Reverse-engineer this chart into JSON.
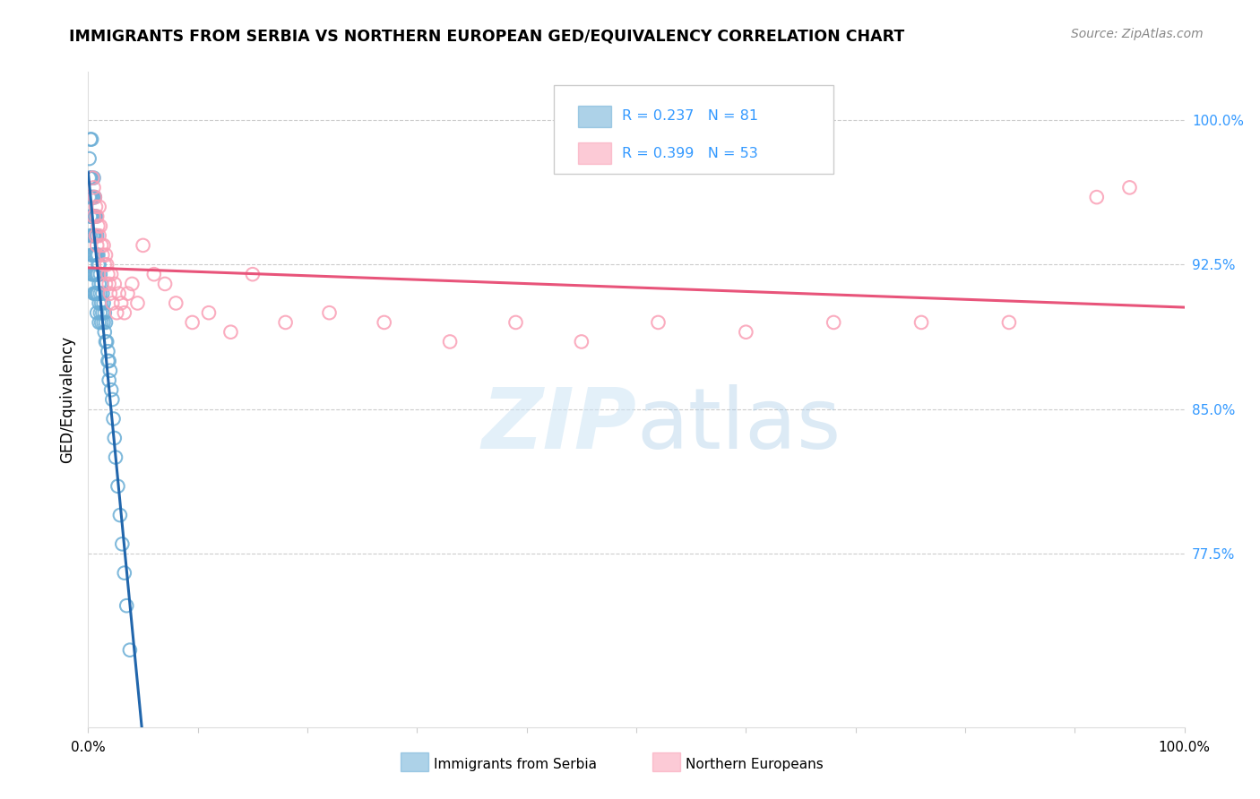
{
  "title": "IMMIGRANTS FROM SERBIA VS NORTHERN EUROPEAN GED/EQUIVALENCY CORRELATION CHART",
  "source": "Source: ZipAtlas.com",
  "ylabel": "GED/Equivalency",
  "ytick_labels": [
    "100.0%",
    "92.5%",
    "85.0%",
    "77.5%"
  ],
  "ytick_values": [
    1.0,
    0.925,
    0.85,
    0.775
  ],
  "xlim": [
    0.0,
    1.0
  ],
  "ylim": [
    0.685,
    1.025
  ],
  "serbia_color": "#6baed6",
  "northern_color": "#fa9fb5",
  "serbia_R": 0.237,
  "serbia_N": 81,
  "northern_R": 0.399,
  "northern_N": 53,
  "serbia_line_color": "#2166ac",
  "northern_line_color": "#e8547a",
  "legend_label_serbia": "Immigrants from Serbia",
  "legend_label_northern": "Northern Europeans",
  "serbia_x": [
    0.001,
    0.001,
    0.001,
    0.002,
    0.002,
    0.002,
    0.002,
    0.002,
    0.003,
    0.003,
    0.003,
    0.003,
    0.003,
    0.003,
    0.004,
    0.004,
    0.004,
    0.004,
    0.004,
    0.005,
    0.005,
    0.005,
    0.005,
    0.005,
    0.005,
    0.005,
    0.006,
    0.006,
    0.006,
    0.006,
    0.006,
    0.006,
    0.007,
    0.007,
    0.007,
    0.007,
    0.007,
    0.008,
    0.008,
    0.008,
    0.008,
    0.008,
    0.009,
    0.009,
    0.009,
    0.009,
    0.01,
    0.01,
    0.01,
    0.01,
    0.011,
    0.011,
    0.011,
    0.012,
    0.012,
    0.012,
    0.013,
    0.013,
    0.014,
    0.014,
    0.015,
    0.015,
    0.016,
    0.016,
    0.017,
    0.018,
    0.018,
    0.019,
    0.019,
    0.02,
    0.021,
    0.022,
    0.023,
    0.024,
    0.025,
    0.027,
    0.029,
    0.031,
    0.033,
    0.035,
    0.038
  ],
  "serbia_y": [
    0.98,
    0.97,
    0.96,
    0.99,
    0.97,
    0.96,
    0.95,
    0.94,
    0.99,
    0.97,
    0.96,
    0.95,
    0.93,
    0.92,
    0.96,
    0.95,
    0.94,
    0.93,
    0.92,
    0.97,
    0.96,
    0.95,
    0.94,
    0.93,
    0.92,
    0.91,
    0.96,
    0.95,
    0.94,
    0.93,
    0.92,
    0.91,
    0.95,
    0.94,
    0.93,
    0.92,
    0.91,
    0.94,
    0.93,
    0.92,
    0.91,
    0.9,
    0.93,
    0.925,
    0.92,
    0.91,
    0.925,
    0.915,
    0.905,
    0.895,
    0.92,
    0.91,
    0.9,
    0.915,
    0.905,
    0.895,
    0.91,
    0.9,
    0.905,
    0.895,
    0.9,
    0.89,
    0.895,
    0.885,
    0.885,
    0.88,
    0.875,
    0.875,
    0.865,
    0.87,
    0.86,
    0.855,
    0.845,
    0.835,
    0.825,
    0.81,
    0.795,
    0.78,
    0.765,
    0.748,
    0.725
  ],
  "northern_x": [
    0.004,
    0.005,
    0.005,
    0.006,
    0.007,
    0.007,
    0.008,
    0.008,
    0.009,
    0.01,
    0.01,
    0.011,
    0.012,
    0.013,
    0.014,
    0.015,
    0.016,
    0.016,
    0.017,
    0.018,
    0.019,
    0.02,
    0.021,
    0.022,
    0.024,
    0.026,
    0.028,
    0.03,
    0.033,
    0.036,
    0.04,
    0.045,
    0.05,
    0.06,
    0.07,
    0.08,
    0.095,
    0.11,
    0.13,
    0.15,
    0.18,
    0.22,
    0.27,
    0.33,
    0.39,
    0.45,
    0.52,
    0.6,
    0.68,
    0.76,
    0.84,
    0.92,
    0.95
  ],
  "northern_y": [
    0.97,
    0.965,
    0.95,
    0.96,
    0.955,
    0.94,
    0.95,
    0.935,
    0.945,
    0.955,
    0.94,
    0.945,
    0.935,
    0.93,
    0.935,
    0.925,
    0.93,
    0.915,
    0.925,
    0.92,
    0.915,
    0.91,
    0.92,
    0.905,
    0.915,
    0.9,
    0.91,
    0.905,
    0.9,
    0.91,
    0.915,
    0.905,
    0.935,
    0.92,
    0.915,
    0.905,
    0.895,
    0.9,
    0.89,
    0.92,
    0.895,
    0.9,
    0.895,
    0.885,
    0.895,
    0.885,
    0.895,
    0.89,
    0.895,
    0.895,
    0.895,
    0.96,
    0.965
  ]
}
